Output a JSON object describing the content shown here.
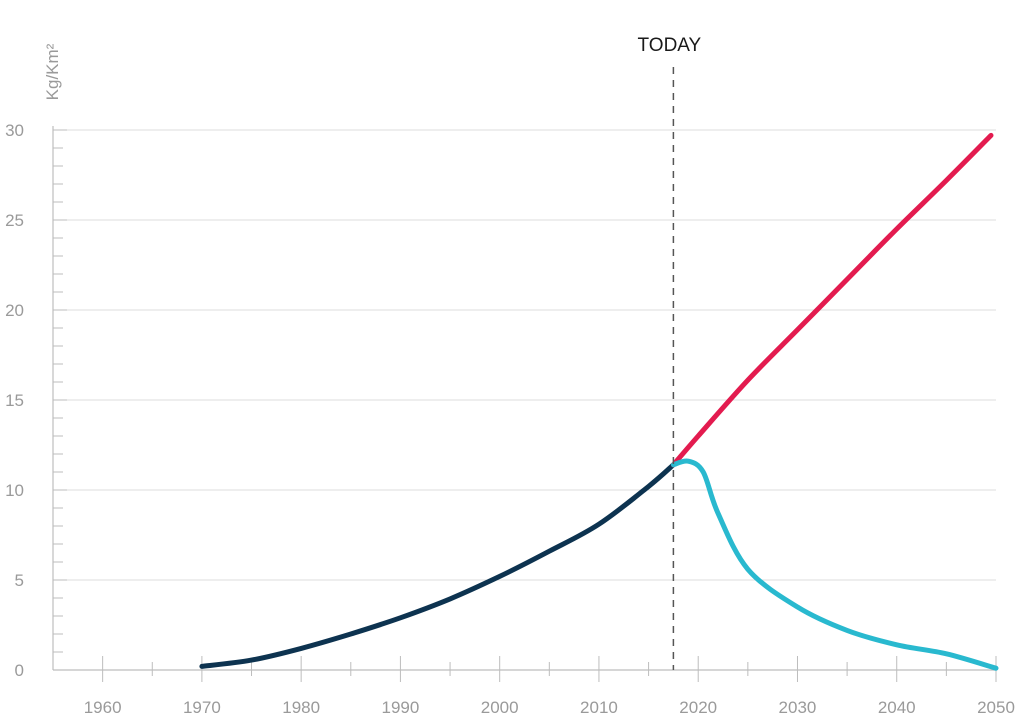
{
  "chart_data": {
    "type": "line",
    "ylabel": "Kg/Km²",
    "xlim": [
      1955,
      2050
    ],
    "ylim": [
      0,
      30
    ],
    "x_ticks": [
      "1960",
      "1970",
      "1980",
      "1990",
      "2000",
      "2010",
      "2020",
      "2030",
      "2040",
      "2050"
    ],
    "y_ticks": [
      "0",
      "5",
      "10",
      "15",
      "20",
      "25",
      "30"
    ],
    "grid": true,
    "annotation": {
      "label": "TODAY",
      "x": 2017.5
    },
    "series": [
      {
        "color": "#0d3350",
        "x": [
          1970,
          1975,
          1980,
          1985,
          1990,
          1995,
          2000,
          2005,
          2010,
          2015,
          2017.5
        ],
        "values": [
          0.2,
          0.55,
          1.2,
          2.0,
          2.9,
          3.95,
          5.2,
          6.6,
          8.1,
          10.2,
          11.4
        ]
      },
      {
        "color": "#e31b4f",
        "x": [
          2017.5,
          2020,
          2025,
          2030,
          2035,
          2040,
          2045,
          2049.5
        ],
        "values": [
          11.4,
          13.0,
          16.1,
          18.9,
          21.7,
          24.5,
          27.2,
          29.7
        ]
      },
      {
        "color": "#29b9cf",
        "x": [
          2017.5,
          2019,
          2020.5,
          2022,
          2025,
          2030,
          2035,
          2040,
          2045,
          2050
        ],
        "values": [
          11.4,
          11.6,
          11.0,
          8.7,
          5.6,
          3.5,
          2.2,
          1.4,
          0.9,
          0.1
        ]
      }
    ]
  }
}
